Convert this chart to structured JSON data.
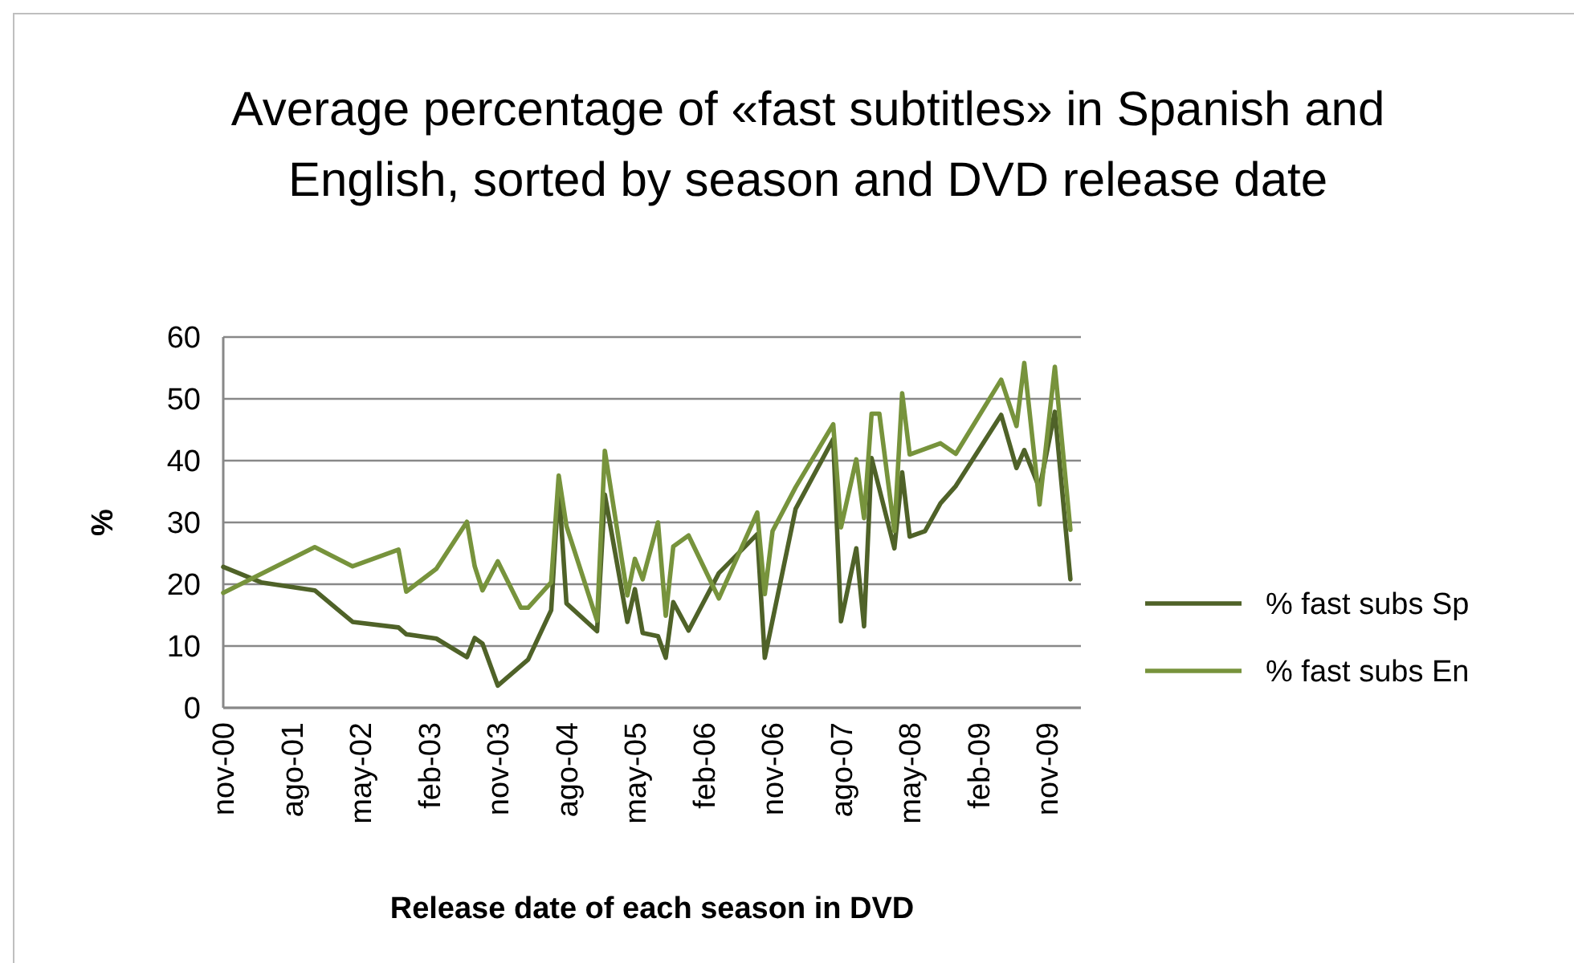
{
  "chart_data": {
    "type": "line",
    "title": "Average percentage of «fast subtitles» in Spanish and English, sorted by season and DVD release date",
    "xlabel": "Release date of each season in DVD",
    "ylabel": "%",
    "xlim": [
      "2000-11-01",
      "2010-03-15"
    ],
    "xticks": [
      {
        "value": "2000-11-01",
        "label": "nov-00"
      },
      {
        "value": "2001-08-01",
        "label": "ago-01"
      },
      {
        "value": "2002-05-01",
        "label": "may-02"
      },
      {
        "value": "2003-02-01",
        "label": "feb-03"
      },
      {
        "value": "2003-11-01",
        "label": "nov-03"
      },
      {
        "value": "2004-08-01",
        "label": "ago-04"
      },
      {
        "value": "2005-05-01",
        "label": "may-05"
      },
      {
        "value": "2006-02-01",
        "label": "feb-06"
      },
      {
        "value": "2006-11-01",
        "label": "nov-06"
      },
      {
        "value": "2007-08-01",
        "label": "ago-07"
      },
      {
        "value": "2008-05-01",
        "label": "may-08"
      },
      {
        "value": "2009-02-01",
        "label": "feb-09"
      },
      {
        "value": "2009-11-01",
        "label": "nov-09"
      }
    ],
    "ylim": [
      0,
      60
    ],
    "yticks": [
      0,
      10,
      20,
      30,
      40,
      50,
      60
    ],
    "grid": "y",
    "legend": "right",
    "marker": "none",
    "line_style": "solid",
    "series": [
      {
        "name": "% fast subs Sp",
        "color": "#4f6228",
        "x": [
          "2000-11",
          "2001-04",
          "2001-11",
          "2002-04",
          "2002-10",
          "2002-11",
          "2003-03",
          "2003-07",
          "2003-08",
          "2003-09",
          "2003-11",
          "2004-03",
          "2004-06",
          "2004-07",
          "2004-08",
          "2004-12",
          "2005-01",
          "2005-04",
          "2005-05",
          "2005-06",
          "2005-08",
          "2005-09",
          "2005-10",
          "2005-12",
          "2006-04",
          "2006-09",
          "2006-10",
          "2007-02",
          "2007-07",
          "2007-08",
          "2007-10",
          "2007-11",
          "2007-12",
          "2008-03",
          "2008-04",
          "2008-05",
          "2008-07",
          "2008-09",
          "2008-11",
          "2009-05",
          "2009-07",
          "2009-08",
          "2009-10",
          "2009-12",
          "2010-02"
        ],
        "values": [
          22.8,
          20.3,
          19,
          13.9,
          13,
          11.9,
          11.2,
          8.2,
          11.3,
          10.4,
          3.6,
          7.8,
          15.8,
          36,
          16.9,
          12.4,
          34.5,
          13.9,
          19.2,
          12.1,
          11.6,
          8.1,
          17.1,
          12.5,
          21.8,
          28.1,
          8.1,
          32.2,
          43.5,
          14,
          25.8,
          13.2,
          40.4,
          25.8,
          38.1,
          27.7,
          28.6,
          33.1,
          35.9,
          47.4,
          38.8,
          41.7,
          35.5,
          47.9,
          20.8
        ]
      },
      {
        "name": "% fast subs En",
        "color": "#77933c",
        "x": [
          "2000-11",
          "2001-11",
          "2002-04",
          "2002-10",
          "2002-11",
          "2003-03",
          "2003-07",
          "2003-08",
          "2003-09",
          "2003-11",
          "2004-02",
          "2004-03",
          "2004-06",
          "2004-07",
          "2004-08",
          "2004-12",
          "2005-01",
          "2005-04",
          "2005-05",
          "2005-06",
          "2005-08",
          "2005-09",
          "2005-10",
          "2005-12",
          "2006-04",
          "2006-09",
          "2006-10",
          "2006-11",
          "2007-02",
          "2007-07",
          "2007-08",
          "2007-10",
          "2007-11",
          "2007-12",
          "2008-01",
          "2008-03",
          "2008-04",
          "2008-05",
          "2008-09",
          "2008-11",
          "2009-05",
          "2009-07",
          "2009-08",
          "2009-10",
          "2009-12",
          "2010-02"
        ],
        "values": [
          18.6,
          26,
          22.9,
          25.6,
          18.8,
          22.5,
          30.1,
          22.9,
          19,
          23.7,
          16.2,
          16.2,
          20.3,
          37.6,
          29.4,
          14.1,
          41.6,
          18.2,
          24.1,
          20.8,
          30,
          14.9,
          26.1,
          27.9,
          17.7,
          31.6,
          18.4,
          28.6,
          35.7,
          45.9,
          29.2,
          40.2,
          30.7,
          47.6,
          47.6,
          28.6,
          50.9,
          41,
          42.8,
          41.1,
          53.1,
          45.6,
          55.8,
          32.9,
          55.2,
          28.8
        ]
      }
    ]
  }
}
